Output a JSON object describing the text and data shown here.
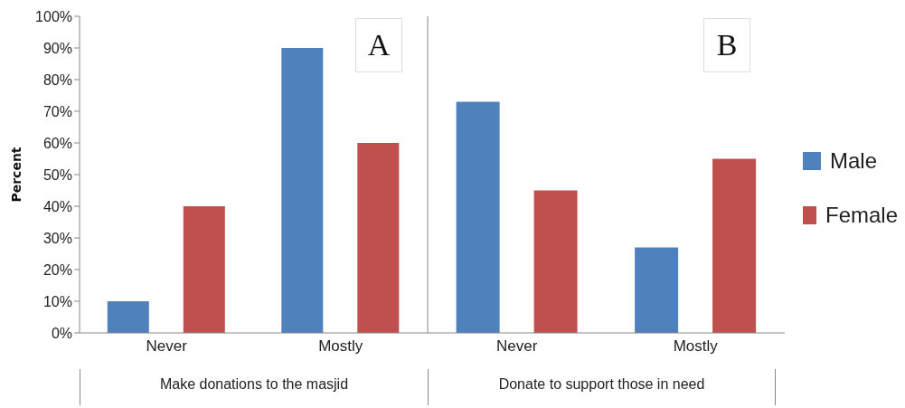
{
  "chart_data": [
    {
      "type": "bar",
      "categories": [
        "Never",
        "Mostly"
      ],
      "xlabel": "Make donations to the masjid",
      "ylabel": "Percent",
      "annotations": [
        "A"
      ],
      "ylim": [
        0,
        100
      ],
      "yticks": [
        {
          "value": 0,
          "label": "0%"
        },
        {
          "value": 10,
          "label": "10%"
        },
        {
          "value": 20,
          "label": "20%"
        },
        {
          "value": 30,
          "label": "30%"
        },
        {
          "value": 40,
          "label": "40%"
        },
        {
          "value": 50,
          "label": "50%"
        },
        {
          "value": 60,
          "label": "60%"
        },
        {
          "value": 70,
          "label": "70%"
        },
        {
          "value": 80,
          "label": "80%"
        },
        {
          "value": 90,
          "label": "90%"
        },
        {
          "value": 100,
          "label": "100%"
        }
      ],
      "series": [
        {
          "color": "#4f81bd",
          "values": [
            10,
            90
          ]
        },
        {
          "color": "#c0504d",
          "values": [
            40,
            60
          ]
        }
      ]
    },
    {
      "type": "bar",
      "categories": [
        "Never",
        "Mostly"
      ],
      "xlabel": "Donate to support those in need",
      "annotations": [
        "B"
      ],
      "ylim": [
        0,
        100
      ],
      "tick_labels": "x",
      "legend": "right",
      "series": [
        {
          "name": "Male",
          "color": "#4f81bd",
          "values": [
            73,
            27
          ]
        },
        {
          "name": "Female",
          "color": "#c0504d",
          "values": [
            45,
            55
          ]
        }
      ]
    }
  ]
}
